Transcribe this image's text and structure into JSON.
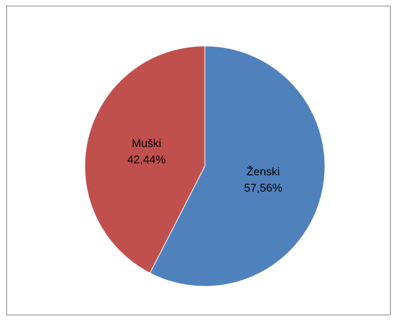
{
  "chart_data": {
    "type": "pie",
    "categories": [
      "Ženski",
      "Muški"
    ],
    "values": [
      57.56,
      42.44
    ],
    "value_labels": [
      "57,56%",
      "42,44%"
    ],
    "colors": [
      "#4f81bd",
      "#c0504d"
    ]
  }
}
